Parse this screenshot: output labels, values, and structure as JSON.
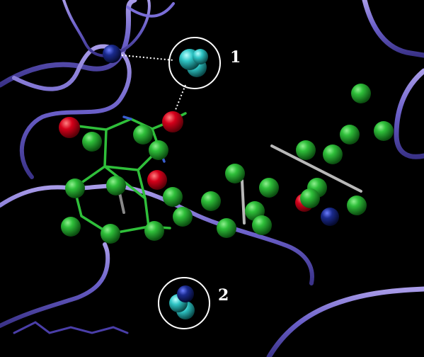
{
  "callouts": [
    {
      "label": "1"
    },
    {
      "label": "2"
    }
  ],
  "colors": {
    "background": "#000000",
    "ribbon": "#6a5fc8",
    "ribbon_highlight": "#a99ce8",
    "ligand_stick": "#2fbf3a",
    "green_sphere": "#22a02a",
    "red_sphere": "#d4001a",
    "blue_sphere": "#1a2a8c",
    "cyan_sphere": "#2ec4c4",
    "grey_stick": "#b8b8b8",
    "callout_circle": "#ffffff"
  }
}
